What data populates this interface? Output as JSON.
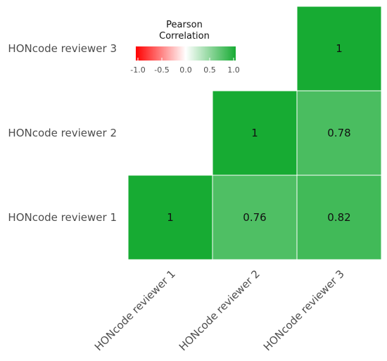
{
  "chart_data": {
    "type": "heatmap",
    "x_categories": [
      "HONcode reviewer 1",
      "HONcode reviewer 2",
      "HONcode reviewer 3"
    ],
    "y_categories": [
      "HONcode reviewer 1",
      "HONcode reviewer 2",
      "HONcode reviewer 3"
    ],
    "cells": [
      {
        "x": "HONcode reviewer 1",
        "y": "HONcode reviewer 1",
        "value": 1,
        "label": "1"
      },
      {
        "x": "HONcode reviewer 2",
        "y": "HONcode reviewer 1",
        "value": 0.76,
        "label": "0.76"
      },
      {
        "x": "HONcode reviewer 3",
        "y": "HONcode reviewer 1",
        "value": 0.82,
        "label": "0.82"
      },
      {
        "x": "HONcode reviewer 2",
        "y": "HONcode reviewer 2",
        "value": 1,
        "label": "1"
      },
      {
        "x": "HONcode reviewer 3",
        "y": "HONcode reviewer 2",
        "value": 0.78,
        "label": "0.78"
      },
      {
        "x": "HONcode reviewer 3",
        "y": "HONcode reviewer 3",
        "value": 1,
        "label": "1"
      }
    ],
    "legend": {
      "title_line1": "Pearson",
      "title_line2": "Correlation",
      "ticks": [
        "-1.0",
        "-0.5",
        "0.0",
        "0.5",
        "1.0"
      ],
      "range": [
        -1,
        1
      ],
      "placement": "top-left"
    },
    "colors": {
      "low": "#ff0000",
      "mid": "#ffffff",
      "high": "#17ab33",
      "cell_border": "#ffffff"
    },
    "grid": false
  }
}
